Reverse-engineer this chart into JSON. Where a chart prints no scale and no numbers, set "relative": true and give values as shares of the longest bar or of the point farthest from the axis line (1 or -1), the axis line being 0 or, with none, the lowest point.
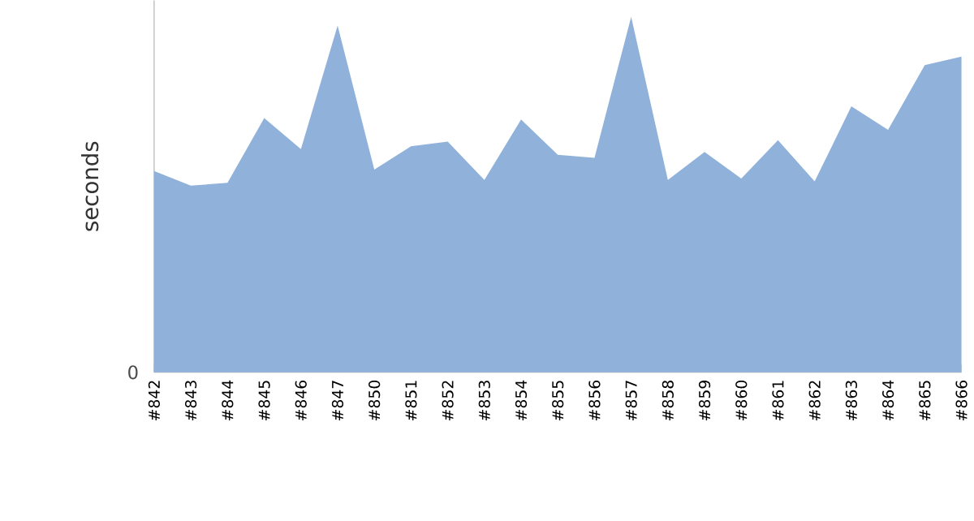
{
  "chart_data": {
    "type": "area",
    "relative": true,
    "ylabel": "seconds",
    "annotations": [
      "0"
    ],
    "color": "#8fb1da",
    "categories": [
      "#842",
      "#843",
      "#844",
      "#845",
      "#846",
      "#847",
      "#850",
      "#851",
      "#852",
      "#853",
      "#854",
      "#855",
      "#856",
      "#857",
      "#858",
      "#859",
      "#860",
      "#861",
      "#862",
      "#863",
      "#864",
      "#865",
      "#866"
    ],
    "values": [
      0.566,
      0.525,
      0.533,
      0.715,
      0.628,
      0.975,
      0.57,
      0.636,
      0.649,
      0.541,
      0.711,
      0.612,
      0.603,
      1,
      0.541,
      0.62,
      0.545,
      0.653,
      0.537,
      0.748,
      0.682,
      0.864,
      0.888
    ]
  }
}
